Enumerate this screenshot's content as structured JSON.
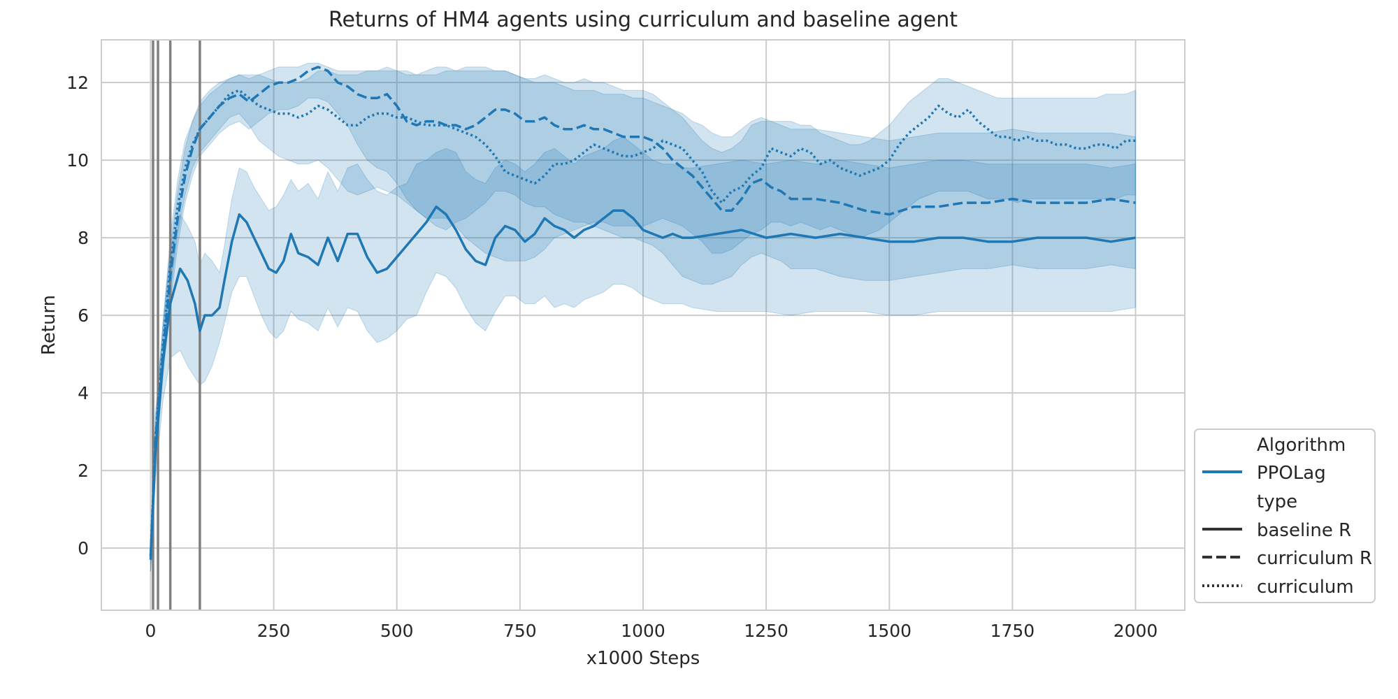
{
  "chart_data": {
    "type": "line",
    "title": "Returns of HM4 agents using curriculum and baseline agent",
    "xlabel": "x1000 Steps",
    "ylabel": "Return",
    "xlim": [
      -100,
      2100
    ],
    "ylim": [
      -1.6,
      13.1
    ],
    "xticks": [
      0,
      250,
      500,
      750,
      1000,
      1250,
      1500,
      1750,
      2000
    ],
    "yticks": [
      0,
      2,
      4,
      6,
      8,
      10,
      12
    ],
    "grid": true,
    "legend_placement": "bottom-right outside",
    "color": "#1f77b4",
    "vertical_lines": [
      5,
      15,
      40,
      100
    ],
    "legend": {
      "algorithm_header": "Algorithm",
      "algorithm_entry": "PPOLag",
      "type_header": "type",
      "type_entries": [
        "baseline R",
        "curriculum R",
        "curriculum"
      ]
    },
    "series": [
      {
        "name": "baseline R",
        "style": "solid",
        "x": [
          0,
          10,
          25,
          40,
          60,
          75,
          90,
          100,
          110,
          125,
          140,
          150,
          165,
          180,
          195,
          210,
          225,
          240,
          255,
          270,
          285,
          300,
          320,
          340,
          360,
          380,
          400,
          420,
          440,
          460,
          480,
          500,
          520,
          540,
          560,
          580,
          600,
          620,
          640,
          660,
          680,
          700,
          720,
          740,
          760,
          780,
          800,
          820,
          840,
          860,
          880,
          900,
          920,
          940,
          960,
          980,
          1000,
          1020,
          1040,
          1060,
          1080,
          1100,
          1150,
          1200,
          1250,
          1300,
          1350,
          1400,
          1450,
          1500,
          1550,
          1600,
          1650,
          1700,
          1750,
          1800,
          1850,
          1900,
          1950,
          2000
        ],
        "y": [
          -0.2,
          2.5,
          4.8,
          6.3,
          7.2,
          6.9,
          6.3,
          5.6,
          6.0,
          6.0,
          6.2,
          6.9,
          7.9,
          8.6,
          8.4,
          8.0,
          7.6,
          7.2,
          7.1,
          7.4,
          8.1,
          7.6,
          7.5,
          7.3,
          8.0,
          7.4,
          8.1,
          8.1,
          7.5,
          7.1,
          7.2,
          7.5,
          7.8,
          8.1,
          8.4,
          8.8,
          8.6,
          8.2,
          7.7,
          7.4,
          7.3,
          8.0,
          8.3,
          8.2,
          7.9,
          8.1,
          8.5,
          8.3,
          8.2,
          8.0,
          8.2,
          8.3,
          8.5,
          8.7,
          8.7,
          8.5,
          8.2,
          8.1,
          8.0,
          8.1,
          8.0,
          8.0,
          8.1,
          8.2,
          8.0,
          8.1,
          8.0,
          8.1,
          8.0,
          7.9,
          7.9,
          8.0,
          8.0,
          7.9,
          7.9,
          8.0,
          8.0,
          8.0,
          7.9,
          8.0
        ],
        "ci_low": [
          -0.6,
          1.8,
          3.8,
          4.9,
          5.1,
          4.7,
          4.4,
          4.2,
          4.3,
          4.7,
          5.3,
          5.8,
          6.6,
          7.0,
          7.0,
          6.5,
          6.0,
          5.6,
          5.4,
          5.6,
          6.1,
          5.9,
          5.8,
          5.6,
          6.2,
          5.7,
          6.2,
          6.1,
          5.6,
          5.3,
          5.4,
          5.6,
          5.9,
          6.0,
          6.6,
          7.1,
          7.0,
          6.7,
          6.2,
          5.8,
          5.6,
          6.1,
          6.5,
          6.5,
          6.3,
          6.3,
          6.5,
          6.2,
          6.3,
          6.2,
          6.4,
          6.5,
          6.6,
          6.8,
          6.8,
          6.7,
          6.5,
          6.4,
          6.3,
          6.3,
          6.3,
          6.2,
          6.1,
          6.1,
          6.1,
          6.0,
          6.1,
          6.1,
          6.1,
          6.0,
          6.0,
          6.1,
          6.1,
          6.1,
          6.1,
          6.1,
          6.1,
          6.1,
          6.1,
          6.2
        ],
        "ci_high": [
          0.2,
          3.1,
          5.8,
          7.7,
          8.6,
          8.3,
          7.9,
          7.3,
          7.6,
          7.4,
          7.1,
          7.8,
          9.0,
          9.8,
          9.7,
          9.3,
          9.0,
          8.7,
          8.8,
          9.1,
          9.5,
          9.2,
          9.4,
          9.0,
          9.7,
          9.2,
          9.8,
          9.9,
          9.5,
          9.2,
          9.1,
          9.3,
          9.4,
          9.9,
          10.0,
          10.2,
          10.3,
          10.2,
          9.7,
          9.5,
          9.4,
          9.8,
          10.0,
          9.9,
          9.7,
          9.9,
          10.2,
          10.3,
          10.1,
          9.9,
          10.1,
          10.2,
          10.3,
          10.5,
          10.6,
          10.4,
          10.2,
          10.0,
          9.9,
          9.9,
          9.8,
          9.8,
          9.9,
          10.0,
          9.9,
          10.0,
          9.9,
          10.0,
          9.9,
          9.8,
          9.9,
          10.0,
          10.0,
          9.9,
          9.9,
          9.9,
          9.9,
          9.9,
          9.8,
          9.9
        ]
      },
      {
        "name": "curriculum R",
        "style": "dashed",
        "x": [
          0,
          10,
          25,
          40,
          55,
          70,
          85,
          100,
          120,
          140,
          160,
          180,
          200,
          220,
          240,
          260,
          280,
          300,
          320,
          340,
          360,
          380,
          400,
          420,
          440,
          460,
          480,
          500,
          520,
          540,
          560,
          580,
          600,
          620,
          640,
          660,
          680,
          700,
          720,
          740,
          760,
          780,
          800,
          820,
          840,
          860,
          880,
          900,
          920,
          940,
          960,
          980,
          1000,
          1020,
          1040,
          1060,
          1080,
          1100,
          1120,
          1140,
          1160,
          1180,
          1200,
          1220,
          1240,
          1260,
          1280,
          1300,
          1350,
          1400,
          1450,
          1500,
          1550,
          1600,
          1650,
          1700,
          1750,
          1800,
          1850,
          1900,
          1950,
          2000
        ],
        "y": [
          -0.3,
          2.8,
          5.0,
          7.0,
          8.5,
          9.6,
          10.3,
          10.8,
          11.1,
          11.4,
          11.6,
          11.7,
          11.5,
          11.7,
          11.9,
          12.0,
          12.0,
          12.1,
          12.3,
          12.4,
          12.3,
          12.0,
          11.9,
          11.7,
          11.6,
          11.6,
          11.7,
          11.4,
          11.0,
          10.9,
          11.0,
          11.0,
          10.9,
          10.9,
          10.8,
          10.9,
          11.1,
          11.3,
          11.3,
          11.2,
          11.0,
          11.0,
          11.1,
          10.9,
          10.8,
          10.8,
          10.9,
          10.8,
          10.8,
          10.7,
          10.6,
          10.6,
          10.6,
          10.5,
          10.3,
          10.0,
          9.8,
          9.6,
          9.3,
          9.0,
          8.7,
          8.7,
          9.0,
          9.4,
          9.5,
          9.3,
          9.2,
          9.0,
          9.0,
          8.9,
          8.7,
          8.6,
          8.8,
          8.8,
          8.9,
          8.9,
          9.0,
          8.9,
          8.9,
          8.9,
          9.0,
          8.9
        ],
        "ci_low": [
          -0.6,
          2.2,
          4.4,
          6.3,
          7.8,
          8.9,
          9.6,
          10.1,
          10.4,
          10.7,
          10.9,
          11.0,
          10.8,
          11.0,
          11.2,
          11.3,
          11.3,
          11.4,
          11.6,
          11.6,
          11.5,
          11.2,
          10.9,
          10.4,
          10.0,
          9.8,
          9.7,
          9.4,
          9.0,
          8.7,
          8.5,
          8.3,
          8.2,
          8.4,
          8.5,
          8.7,
          8.9,
          9.2,
          9.2,
          9.1,
          8.9,
          8.8,
          8.8,
          8.6,
          8.5,
          8.4,
          8.4,
          8.3,
          8.2,
          8.1,
          8.0,
          8.0,
          7.9,
          7.8,
          7.6,
          7.3,
          7.0,
          6.9,
          6.8,
          6.8,
          6.9,
          7.0,
          7.3,
          7.5,
          7.6,
          7.5,
          7.4,
          7.2,
          7.2,
          7.0,
          6.9,
          6.9,
          7.0,
          7.1,
          7.2,
          7.2,
          7.3,
          7.2,
          7.2,
          7.2,
          7.3,
          7.2
        ],
        "ci_high": [
          0.0,
          3.4,
          5.6,
          7.7,
          9.2,
          10.3,
          11.0,
          11.5,
          11.8,
          12.0,
          12.1,
          12.2,
          12.1,
          12.2,
          12.3,
          12.4,
          12.4,
          12.4,
          12.5,
          12.5,
          12.4,
          12.3,
          12.3,
          12.3,
          12.3,
          12.3,
          12.4,
          12.3,
          12.2,
          12.2,
          12.3,
          12.4,
          12.4,
          12.3,
          12.3,
          12.3,
          12.3,
          12.3,
          12.3,
          12.2,
          12.1,
          12.1,
          12.2,
          12.1,
          12.0,
          12.0,
          12.1,
          12.0,
          12.0,
          11.9,
          11.8,
          11.8,
          11.8,
          11.7,
          11.5,
          11.3,
          11.2,
          11.0,
          10.9,
          10.7,
          10.6,
          10.6,
          10.8,
          11.0,
          11.1,
          11.0,
          10.9,
          10.8,
          10.8,
          10.7,
          10.6,
          10.5,
          10.6,
          10.7,
          10.7,
          10.7,
          10.8,
          10.7,
          10.7,
          10.7,
          10.7,
          10.6
        ]
      },
      {
        "name": "curriculum",
        "style": "dotted",
        "x": [
          0,
          10,
          25,
          40,
          55,
          70,
          85,
          100,
          120,
          140,
          160,
          180,
          200,
          220,
          240,
          260,
          280,
          300,
          320,
          340,
          360,
          380,
          400,
          420,
          440,
          460,
          480,
          500,
          520,
          540,
          560,
          580,
          600,
          620,
          640,
          660,
          680,
          700,
          720,
          740,
          760,
          780,
          800,
          820,
          840,
          860,
          880,
          900,
          920,
          940,
          960,
          980,
          1000,
          1020,
          1040,
          1060,
          1080,
          1100,
          1120,
          1140,
          1160,
          1180,
          1200,
          1220,
          1240,
          1260,
          1280,
          1300,
          1320,
          1340,
          1360,
          1380,
          1400,
          1420,
          1440,
          1460,
          1480,
          1500,
          1520,
          1540,
          1560,
          1580,
          1600,
          1620,
          1640,
          1660,
          1680,
          1700,
          1720,
          1740,
          1760,
          1780,
          1800,
          1820,
          1840,
          1860,
          1880,
          1900,
          1920,
          1940,
          1960,
          1980,
          2000
        ],
        "y": [
          -0.2,
          2.9,
          5.2,
          7.3,
          8.8,
          9.8,
          10.4,
          10.8,
          11.1,
          11.4,
          11.7,
          11.8,
          11.6,
          11.4,
          11.3,
          11.2,
          11.2,
          11.1,
          11.2,
          11.4,
          11.3,
          11.1,
          10.9,
          10.9,
          11.1,
          11.2,
          11.2,
          11.1,
          11.1,
          11.0,
          10.9,
          10.9,
          10.9,
          10.8,
          10.7,
          10.6,
          10.4,
          10.1,
          9.7,
          9.6,
          9.5,
          9.4,
          9.6,
          9.9,
          9.9,
          10.0,
          10.2,
          10.4,
          10.3,
          10.2,
          10.1,
          10.1,
          10.2,
          10.3,
          10.5,
          10.4,
          10.3,
          10.0,
          9.7,
          9.2,
          8.9,
          9.2,
          9.3,
          9.6,
          9.8,
          10.3,
          10.2,
          10.1,
          10.3,
          10.2,
          9.9,
          10.0,
          9.8,
          9.7,
          9.6,
          9.7,
          9.8,
          10.0,
          10.4,
          10.7,
          10.9,
          11.1,
          11.4,
          11.2,
          11.1,
          11.3,
          11.0,
          10.8,
          10.6,
          10.6,
          10.5,
          10.6,
          10.5,
          10.5,
          10.4,
          10.4,
          10.3,
          10.3,
          10.4,
          10.4,
          10.3,
          10.5,
          10.5
        ],
        "ci_low": [
          -0.6,
          2.3,
          4.6,
          6.6,
          8.1,
          9.1,
          9.8,
          10.2,
          10.5,
          10.8,
          11.1,
          11.2,
          10.9,
          10.5,
          10.3,
          10.1,
          10.0,
          9.9,
          9.9,
          10.0,
          9.8,
          9.5,
          9.2,
          9.1,
          9.2,
          9.3,
          9.2,
          9.1,
          8.9,
          8.7,
          8.5,
          8.5,
          8.5,
          8.3,
          8.0,
          7.8,
          7.6,
          7.5,
          7.4,
          7.4,
          7.4,
          7.5,
          7.7,
          8.0,
          8.1,
          8.2,
          8.3,
          8.4,
          8.4,
          8.3,
          8.3,
          8.3,
          8.3,
          8.4,
          8.5,
          8.4,
          8.3,
          8.1,
          7.9,
          7.6,
          7.6,
          7.7,
          7.9,
          8.1,
          8.2,
          8.4,
          8.4,
          8.3,
          8.4,
          8.3,
          8.2,
          8.3,
          8.2,
          8.1,
          8.0,
          8.1,
          8.2,
          8.4,
          8.6,
          8.8,
          9.0,
          9.1,
          9.2,
          9.2,
          9.2,
          9.2,
          9.1,
          9.0,
          9.0,
          9.0,
          8.9,
          9.0,
          9.0,
          9.0,
          9.0,
          9.0,
          9.0,
          9.0,
          9.0,
          9.0,
          9.0,
          9.1,
          9.1
        ],
        "ci_high": [
          0.2,
          3.5,
          5.8,
          8.0,
          9.5,
          10.5,
          11.0,
          11.4,
          11.7,
          11.9,
          12.1,
          12.2,
          12.2,
          12.2,
          12.1,
          12.0,
          12.0,
          12.0,
          12.1,
          12.3,
          12.3,
          12.2,
          12.2,
          12.2,
          12.3,
          12.3,
          12.3,
          12.3,
          12.3,
          12.2,
          12.2,
          12.2,
          12.3,
          12.3,
          12.4,
          12.4,
          12.4,
          12.3,
          12.3,
          12.2,
          12.1,
          12.0,
          12.0,
          12.0,
          11.9,
          11.8,
          11.8,
          11.8,
          11.7,
          11.7,
          11.7,
          11.6,
          11.6,
          11.5,
          11.4,
          11.3,
          11.1,
          10.8,
          10.5,
          10.3,
          10.2,
          10.3,
          10.5,
          10.9,
          11.0,
          11.0,
          11.0,
          11.0,
          10.9,
          10.9,
          10.7,
          10.6,
          10.5,
          10.4,
          10.4,
          10.5,
          10.7,
          10.9,
          11.2,
          11.5,
          11.7,
          11.9,
          12.1,
          12.1,
          12.0,
          11.9,
          11.8,
          11.7,
          11.6,
          11.6,
          11.6,
          11.6,
          11.6,
          11.6,
          11.6,
          11.6,
          11.6,
          11.6,
          11.6,
          11.7,
          11.7,
          11.7,
          11.8
        ]
      }
    ]
  }
}
